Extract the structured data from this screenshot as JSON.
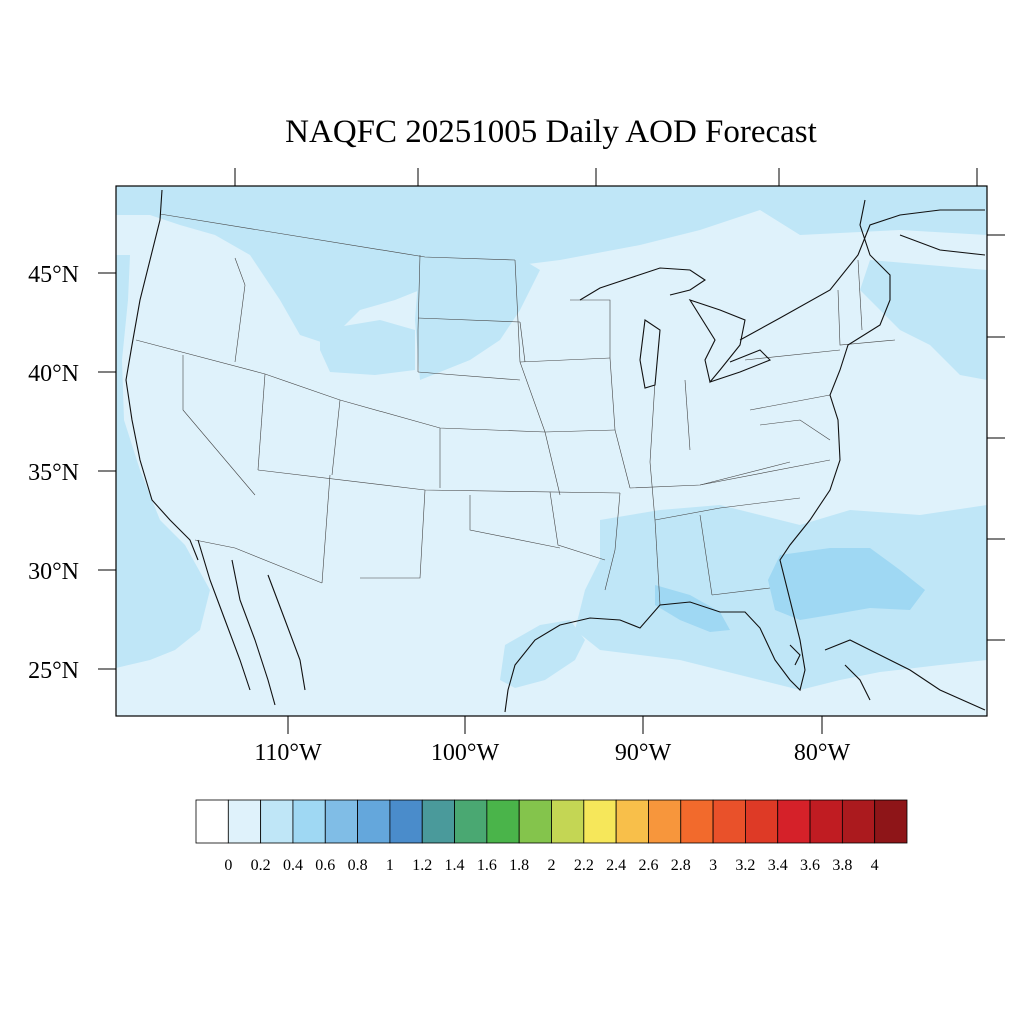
{
  "title": "NAQFC 20251005 Daily AOD Forecast",
  "lat_labels": [
    "45°N",
    "40°N",
    "35°N",
    "30°N",
    "25°N"
  ],
  "lon_labels": [
    "110°W",
    "100°W",
    "90°W",
    "80°W"
  ],
  "colorbar": {
    "labels": [
      "0",
      "0.2",
      "0.4",
      "0.6",
      "0.8",
      "1",
      "1.2",
      "1.4",
      "1.6",
      "1.8",
      "2",
      "2.2",
      "2.4",
      "2.6",
      "2.8",
      "3",
      "3.2",
      "3.4",
      "3.6",
      "3.8",
      "4"
    ],
    "colors": [
      "#ffffff",
      "#dff2fb",
      "#bfe6f7",
      "#9fd8f3",
      "#80bde6",
      "#64a7dc",
      "#4a8ccb",
      "#4a9a9b",
      "#4aa872",
      "#4ab44a",
      "#84c44c",
      "#c4d654",
      "#f6e75a",
      "#f8bf4a",
      "#f7963c",
      "#f26a2c",
      "#e9512a",
      "#de3a26",
      "#d52129",
      "#c01c22",
      "#ab1a1e",
      "#8e1518"
    ]
  },
  "colors": {
    "background_aod": "#dff2fb",
    "moderate_aod": "#bfe6f7",
    "higher_aod": "#9fd8f3"
  }
}
